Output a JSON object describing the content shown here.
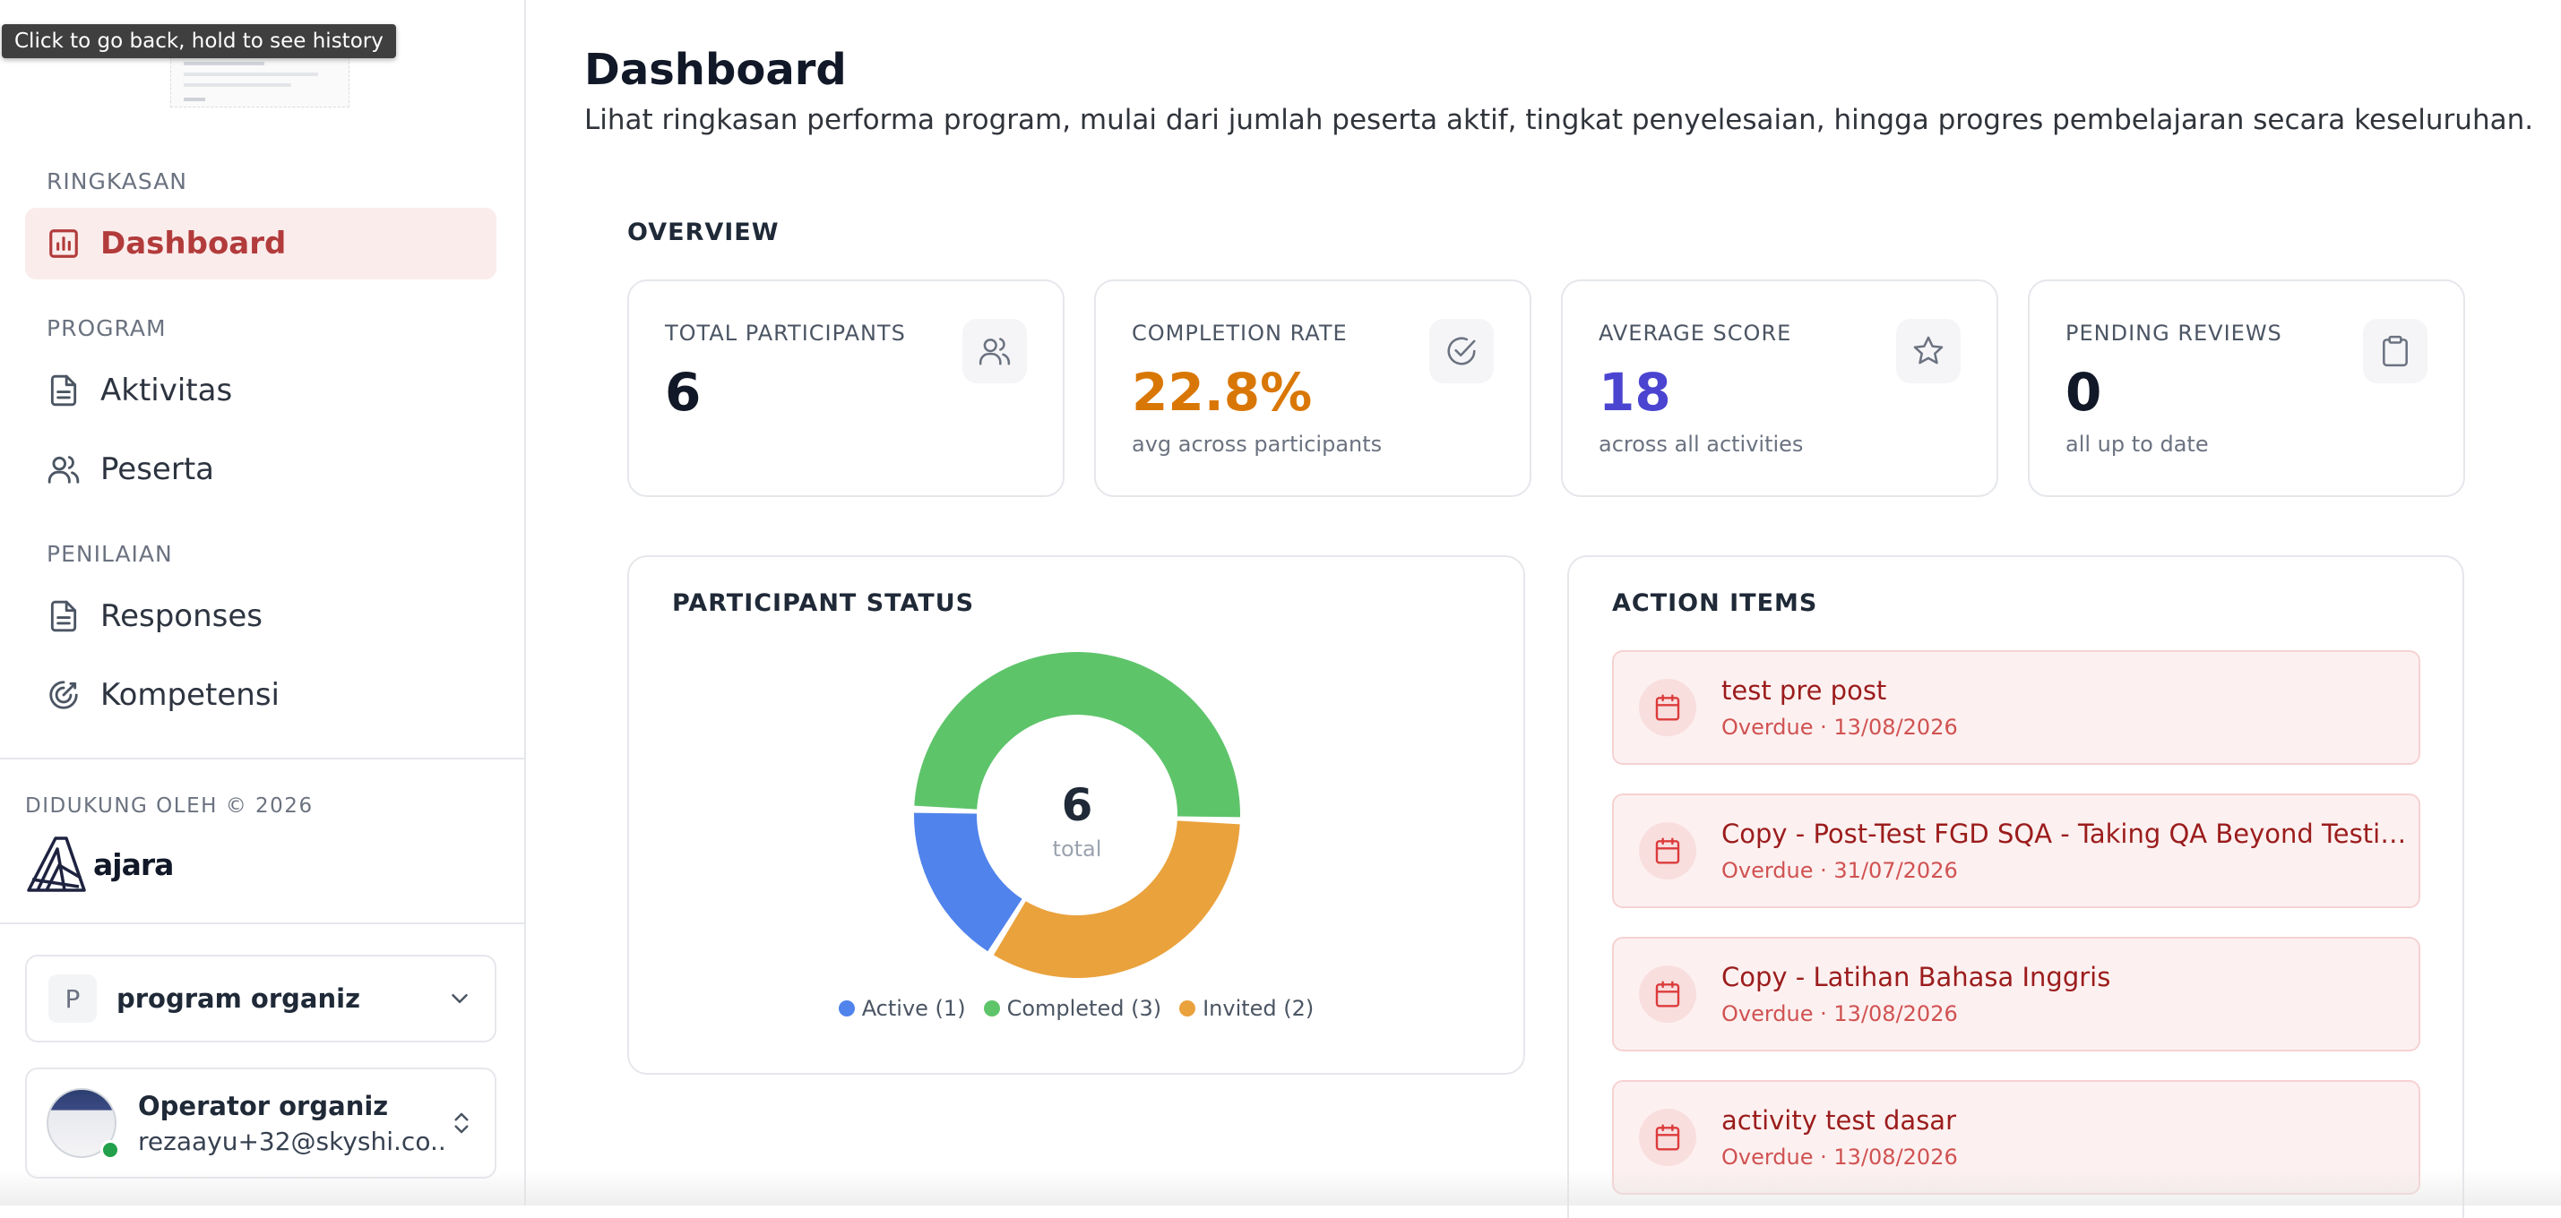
{
  "browser": {
    "tooltip": "Click to go back, hold to see history"
  },
  "sidebar": {
    "sections": [
      {
        "label": "RINGKASAN"
      },
      {
        "label": "PROGRAM"
      },
      {
        "label": "PENILAIAN"
      }
    ],
    "items": [
      {
        "label": "Dashboard",
        "icon": "bar-chart-icon",
        "active": true
      },
      {
        "label": "Aktivitas",
        "icon": "document-icon"
      },
      {
        "label": "Peserta",
        "icon": "users-icon"
      },
      {
        "label": "Responses",
        "icon": "document-icon"
      },
      {
        "label": "Kompetensi",
        "icon": "target-icon"
      }
    ],
    "supported_by": "DIDUKUNG OLEH © 2026",
    "brand_name": "ajara",
    "org": {
      "initial": "P",
      "name": "program organiz"
    },
    "user": {
      "name": "Operator organiz",
      "email": "rezaayu+32@skyshi.co..."
    }
  },
  "main": {
    "title": "Dashboard",
    "description": "Lihat ringkasan performa program, mulai dari jumlah peserta aktif, tingkat penyelesaian, hingga progres pembelajaran secara keseluruhan.",
    "overview_label": "OVERVIEW",
    "stats": [
      {
        "label": "TOTAL PARTICIPANTS",
        "value": "6",
        "sub": "",
        "color": "#111827",
        "icon": "users-icon"
      },
      {
        "label": "COMPLETION RATE",
        "value": "22.8%",
        "sub": "avg across participants",
        "color": "#d97706",
        "icon": "check-circle-icon"
      },
      {
        "label": "AVERAGE SCORE",
        "value": "18",
        "sub": "across all activities",
        "color": "#4a44d1",
        "icon": "star-icon"
      },
      {
        "label": "PENDING REVIEWS",
        "value": "0",
        "sub": "all up to date",
        "color": "#111827",
        "icon": "clipboard-icon"
      }
    ],
    "participant_status": {
      "title": "PARTICIPANT STATUS",
      "center_value": "6",
      "center_label": "total"
    },
    "action_items": {
      "title": "ACTION ITEMS",
      "items": [
        {
          "title": "test pre post",
          "meta": "Overdue · 13/08/2026"
        },
        {
          "title": "Copy - Post-Test FGD SQA - Taking QA Beyond Testing w...",
          "meta": "Overdue · 31/07/2026"
        },
        {
          "title": "Copy - Latihan Bahasa Inggris",
          "meta": "Overdue · 13/08/2026"
        },
        {
          "title": "activity test dasar",
          "meta": "Overdue · 13/08/2026"
        }
      ]
    }
  },
  "chart_data": {
    "type": "pie",
    "categories": [
      "Active",
      "Completed",
      "Invited"
    ],
    "values": [
      1,
      3,
      2
    ],
    "legend": [
      "Active (1)",
      "Completed (3)",
      "Invited (2)"
    ],
    "colors": [
      "#5083ec",
      "#5ec46a",
      "#eaa23d"
    ],
    "legend_position": "bottom"
  }
}
